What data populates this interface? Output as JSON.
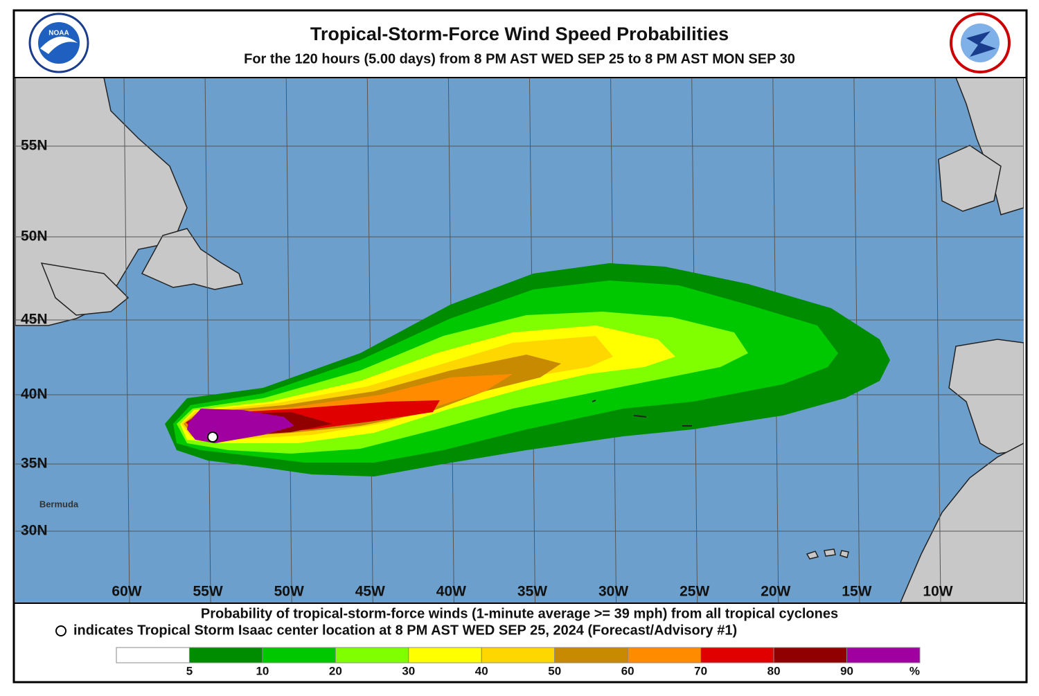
{
  "header": {
    "title": "Tropical-Storm-Force Wind Speed Probabilities",
    "subtitle": "For the 120 hours (5.00 days) from 8 PM AST WED SEP 25 to 8 PM AST MON SEP 30"
  },
  "map": {
    "latitude_labels": [
      "55N",
      "50N",
      "45N",
      "40N",
      "35N",
      "30N"
    ],
    "longitude_labels": [
      "60W",
      "55W",
      "50W",
      "45W",
      "40W",
      "35W",
      "30W",
      "25W",
      "20W",
      "15W",
      "10W"
    ],
    "place_label": "Bermuda"
  },
  "footer": {
    "line1": "Probability of tropical-storm-force winds (1-minute average >= 39 mph) from all tropical cyclones",
    "line2": "indicates Tropical Storm Isaac center location at 8 PM AST WED SEP 25, 2024 (Forecast/Advisory #1)"
  },
  "legend": {
    "colors": [
      "#ffffff",
      "#008c00",
      "#00c800",
      "#80ff00",
      "#ffff00",
      "#ffd700",
      "#c88a00",
      "#ff8c00",
      "#e00000",
      "#900000",
      "#a000a0"
    ],
    "labels": [
      "5",
      "10",
      "20",
      "30",
      "40",
      "50",
      "60",
      "70",
      "80",
      "90",
      "%"
    ]
  }
}
